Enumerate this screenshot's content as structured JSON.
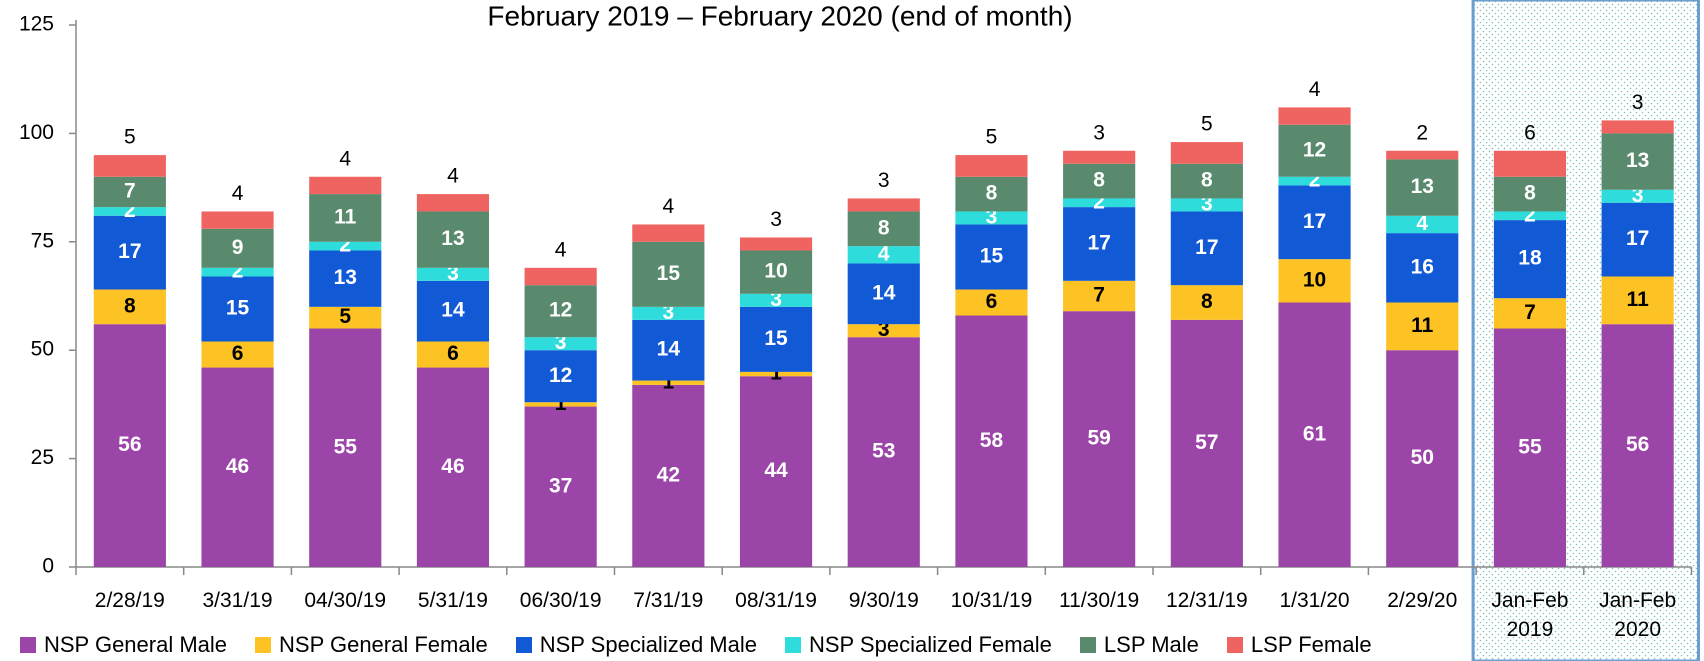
{
  "chart_data": {
    "type": "stacked-bar",
    "title": "February 2019 – February 2020 (end of month)",
    "categories": [
      "2/28/19",
      "3/31/19",
      "04/30/19",
      "5/31/19",
      "06/30/19",
      "7/31/19",
      "08/31/19",
      "9/30/19",
      "10/31/19",
      "11/30/19",
      "12/31/19",
      "1/31/20",
      "2/29/20",
      "Jan-Feb 2019",
      "Jan-Feb 2020"
    ],
    "series": [
      {
        "name": "NSP General Male",
        "color": "#9b45a8",
        "values": [
          56,
          46,
          55,
          46,
          37,
          42,
          44,
          53,
          58,
          59,
          57,
          61,
          50,
          55,
          56
        ]
      },
      {
        "name": "NSP General Female",
        "color": "#fdc325",
        "values": [
          8,
          6,
          5,
          6,
          1,
          1,
          1,
          3,
          6,
          7,
          8,
          10,
          11,
          7,
          11
        ]
      },
      {
        "name": "NSP Specialized Male",
        "color": "#1259d6",
        "values": [
          17,
          15,
          13,
          14,
          12,
          14,
          15,
          14,
          15,
          17,
          17,
          17,
          16,
          18,
          17
        ]
      },
      {
        "name": "NSP Specialized Female",
        "color": "#2edcdc",
        "values": [
          2,
          2,
          2,
          3,
          3,
          3,
          3,
          4,
          3,
          2,
          3,
          2,
          4,
          2,
          3
        ]
      },
      {
        "name": "LSP  Male",
        "color": "#5a8a6e",
        "values": [
          7,
          9,
          11,
          13,
          12,
          15,
          10,
          8,
          8,
          8,
          8,
          12,
          13,
          8,
          13
        ]
      },
      {
        "name": "LSP Female",
        "color": "#ef6461",
        "values": [
          5,
          4,
          4,
          4,
          4,
          4,
          3,
          3,
          5,
          3,
          5,
          4,
          2,
          6,
          3
        ]
      }
    ],
    "ylim": [
      0,
      125
    ],
    "yticks": [
      0,
      25,
      50,
      75,
      100,
      125
    ]
  }
}
